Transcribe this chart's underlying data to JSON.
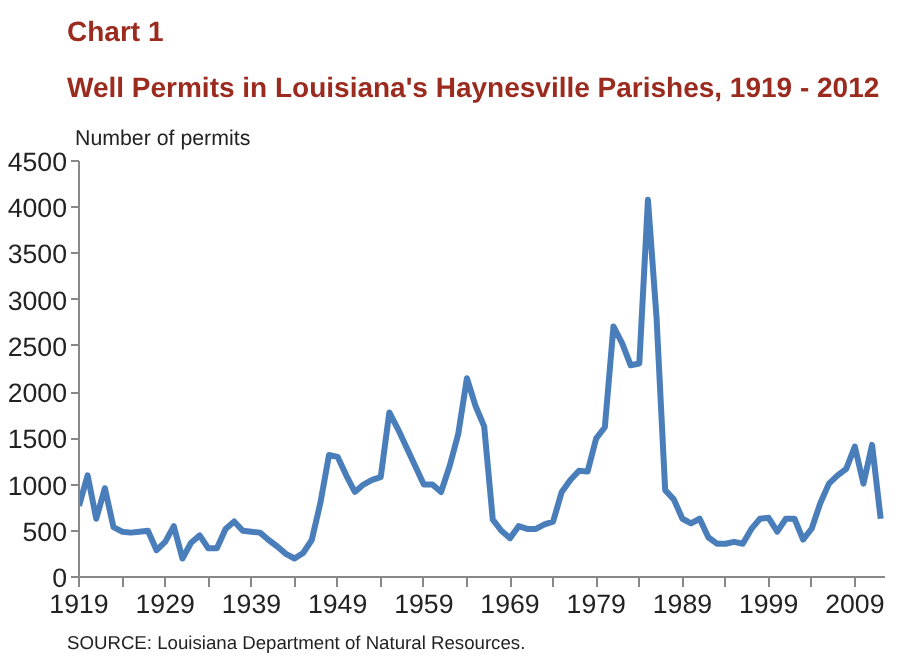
{
  "chart_data": {
    "type": "line",
    "title": "Chart 1",
    "subtitle": "Well Permits in Louisiana's Haynesville Parishes, 1919 - 2012",
    "ylabel": "Number of permits",
    "annotations": [
      "SOURCE: Louisiana Department of Natural Resources."
    ],
    "x": [
      1919,
      1920,
      1921,
      1922,
      1923,
      1924,
      1925,
      1926,
      1927,
      1928,
      1929,
      1930,
      1931,
      1932,
      1933,
      1934,
      1935,
      1936,
      1937,
      1938,
      1939,
      1940,
      1941,
      1942,
      1943,
      1944,
      1945,
      1946,
      1947,
      1948,
      1949,
      1950,
      1951,
      1952,
      1953,
      1954,
      1955,
      1956,
      1957,
      1958,
      1959,
      1960,
      1961,
      1962,
      1963,
      1964,
      1965,
      1966,
      1967,
      1968,
      1969,
      1970,
      1971,
      1972,
      1973,
      1974,
      1975,
      1976,
      1977,
      1978,
      1979,
      1980,
      1981,
      1982,
      1983,
      1984,
      1985,
      1986,
      1987,
      1988,
      1989,
      1990,
      1991,
      1992,
      1993,
      1994,
      1995,
      1996,
      1997,
      1998,
      1999,
      2000,
      2001,
      2002,
      2003,
      2004,
      2005,
      2006,
      2007,
      2008,
      2009,
      2010,
      2011,
      2012
    ],
    "series": [
      {
        "color": "#4a7ebb",
        "values": [
          770,
          1100,
          630,
          960,
          540,
          490,
          480,
          490,
          500,
          290,
          380,
          550,
          200,
          370,
          450,
          310,
          310,
          520,
          600,
          500,
          490,
          480,
          400,
          330,
          250,
          200,
          260,
          400,
          800,
          1320,
          1300,
          1100,
          920,
          1000,
          1050,
          1080,
          1780,
          1600,
          1400,
          1200,
          1000,
          1000,
          920,
          1200,
          1550,
          2150,
          1850,
          1630,
          620,
          500,
          420,
          550,
          520,
          520,
          570,
          600,
          920,
          1050,
          1150,
          1140,
          1500,
          1620,
          2710,
          2530,
          2290,
          2310,
          4080,
          2800,
          940,
          840,
          630,
          580,
          630,
          430,
          360,
          360,
          380,
          360,
          520,
          630,
          640,
          490,
          630,
          630,
          405,
          525,
          800,
          1010,
          1100,
          1170,
          1410,
          1010,
          1430,
          630
        ]
      }
    ],
    "xlim": [
      1919,
      2012.5
    ],
    "ylim": [
      0,
      4500
    ],
    "xticks": [
      1919,
      {
        "value": 1924,
        "label": null
      },
      1929,
      {
        "value": 1934,
        "label": null
      },
      1939,
      {
        "value": 1944,
        "label": null
      },
      1949,
      {
        "value": 1954,
        "label": null
      },
      1959,
      {
        "value": 1964,
        "label": null
      },
      1969,
      {
        "value": 1974,
        "label": null
      },
      1979,
      {
        "value": 1984,
        "label": null
      },
      1989,
      {
        "value": 1994,
        "label": null
      },
      1999,
      {
        "value": 2004,
        "label": null
      },
      2009
    ],
    "yticks": [
      0,
      500,
      1000,
      1500,
      2000,
      2500,
      3000,
      3500,
      4000,
      4500
    ],
    "grid": false,
    "marker": "none",
    "line_style": "solid"
  }
}
